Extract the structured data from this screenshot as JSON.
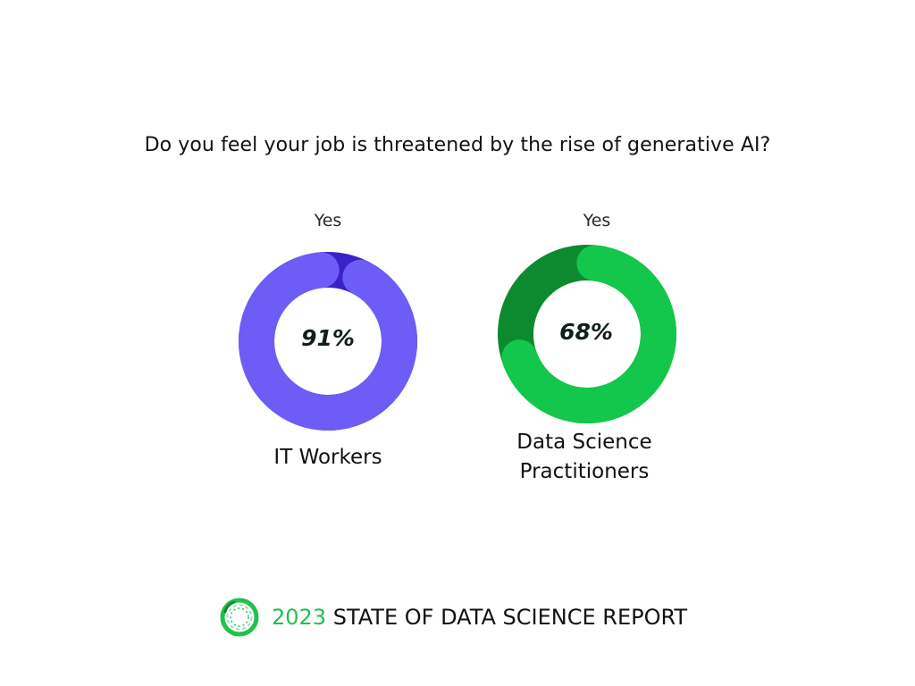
{
  "title": "Do you feel your job is threatened by the rise of generative AI?",
  "chart_data": {
    "type": "pie",
    "variant": "donut",
    "title": "Do you feel your job is threatened by the rise of generative AI?",
    "series": [
      {
        "name": "IT Workers",
        "category": "Yes",
        "value": 91,
        "value_label": "91%",
        "colors": {
          "main": "#6e5cf6",
          "rest": "#3b21c8"
        }
      },
      {
        "name": "Data Science Practitioners",
        "category": "Yes",
        "value": 68,
        "value_label": "68%",
        "colors": {
          "main": "#12c74c",
          "rest": "#0d8a30"
        }
      }
    ]
  },
  "charts_text": [
    {
      "category": "Yes",
      "value_label": "91%",
      "group_lines": [
        "IT Workers"
      ]
    },
    {
      "category": "Yes",
      "value_label": "68%",
      "group_lines": [
        "Data Science",
        "Practitioners"
      ]
    }
  ],
  "footer": {
    "year": "2023",
    "text": "STATE OF DATA SCIENCE REPORT",
    "logo_icon": "anaconda-ring-logo",
    "accent": "#1fc24d"
  }
}
